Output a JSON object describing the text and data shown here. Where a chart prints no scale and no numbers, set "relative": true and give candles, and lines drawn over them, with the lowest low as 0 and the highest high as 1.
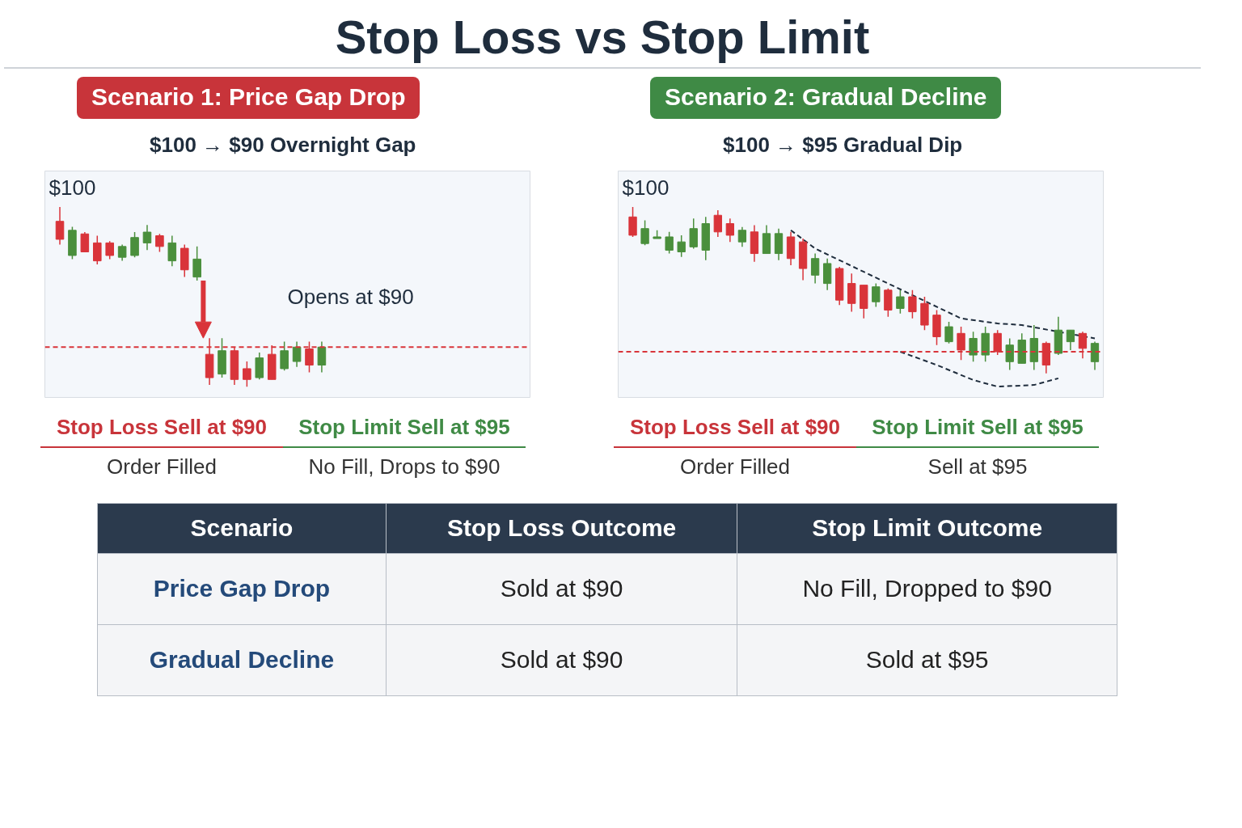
{
  "chart_data": [
    {
      "type": "other",
      "title": "Stop Loss vs Stop Limit"
    },
    {
      "type": "candlestick",
      "title": "Scenario 1: Price Gap Drop",
      "subtitle": "$100 → $90 Overnight Gap",
      "relative": true,
      "categories": [
        null,
        null,
        null,
        null,
        null,
        null,
        null,
        null,
        null,
        null,
        null,
        null,
        null,
        null,
        null,
        null,
        null,
        null,
        null,
        null,
        null,
        null
      ],
      "tick_labels": false,
      "ohlc": [
        [
          0.92,
          1,
          0.79,
          0.82
        ],
        [
          0.73,
          0.89,
          0.71,
          0.87
        ],
        [
          0.85,
          0.86,
          0.75,
          0.75
        ],
        [
          0.8,
          0.84,
          0.68,
          0.7
        ],
        [
          0.8,
          0.81,
          0.71,
          0.73
        ],
        [
          0.72,
          0.79,
          0.7,
          0.78
        ],
        [
          0.73,
          0.86,
          0.72,
          0.83
        ],
        [
          0.8,
          0.9,
          0.76,
          0.86
        ],
        [
          0.84,
          0.85,
          0.75,
          0.78
        ],
        [
          0.7,
          0.84,
          0.67,
          0.8
        ],
        [
          0.77,
          0.79,
          0.61,
          0.65
        ],
        [
          0.61,
          0.78,
          0.59,
          0.71
        ],
        [
          0.18,
          0.27,
          0.01,
          0.05
        ],
        [
          0.07,
          0.27,
          0.05,
          0.2
        ],
        [
          0.2,
          0.22,
          0.01,
          0.04
        ],
        [
          0.1,
          0.14,
          0,
          0.04
        ],
        [
          0.05,
          0.19,
          0.04,
          0.16
        ],
        [
          0.18,
          0.23,
          0.04,
          0.04
        ],
        [
          0.1,
          0.25,
          0.09,
          0.2
        ],
        [
          0.14,
          0.25,
          0.11,
          0.22
        ],
        [
          0.21,
          0.25,
          0.08,
          0.12
        ],
        [
          0.12,
          0.25,
          0.08,
          0.22
        ]
      ],
      "ref_lines": [
        {
          "axis": "y",
          "value": 0.22,
          "color": "#d9343a",
          "line_style": "dashed"
        }
      ],
      "annotations": [
        "$100",
        "Opens at $90",
        "Stop Loss Sell at $90",
        "Stop Limit Sell at $95",
        "Order Filled",
        "No Fill, Drops to $90"
      ]
    },
    {
      "type": "candlestick",
      "title": "Scenario 2: Gradual Decline",
      "subtitle": "$100 → $95 Gradual Dip",
      "relative": true,
      "tick_labels": false,
      "categories": [
        null,
        null,
        null,
        null,
        null,
        null,
        null,
        null,
        null,
        null,
        null,
        null,
        null,
        null,
        null,
        null,
        null,
        null,
        null,
        null,
        null,
        null,
        null,
        null,
        null,
        null,
        null,
        null,
        null,
        null,
        null,
        null,
        null,
        null,
        null,
        null,
        null,
        null,
        null
      ],
      "ohlc": [
        [
          0.94,
          1,
          0.82,
          0.83
        ],
        [
          0.78,
          0.92,
          0.77,
          0.87
        ],
        [
          0.81,
          0.86,
          0.81,
          0.82
        ],
        [
          0.74,
          0.85,
          0.72,
          0.82
        ],
        [
          0.73,
          0.83,
          0.7,
          0.79
        ],
        [
          0.76,
          0.93,
          0.75,
          0.87
        ],
        [
          0.74,
          0.94,
          0.68,
          0.9
        ],
        [
          0.95,
          0.98,
          0.82,
          0.85
        ],
        [
          0.9,
          0.93,
          0.79,
          0.83
        ],
        [
          0.79,
          0.88,
          0.76,
          0.86
        ],
        [
          0.85,
          0.89,
          0.67,
          0.72
        ],
        [
          0.72,
          0.89,
          0.72,
          0.84
        ],
        [
          0.72,
          0.87,
          0.68,
          0.84
        ],
        [
          0.82,
          0.85,
          0.65,
          0.69
        ],
        [
          0.79,
          0.81,
          0.56,
          0.63
        ],
        [
          0.59,
          0.72,
          0.54,
          0.69
        ],
        [
          0.54,
          0.69,
          0.5,
          0.66
        ],
        [
          0.63,
          0.64,
          0.41,
          0.44
        ],
        [
          0.54,
          0.6,
          0.37,
          0.42
        ],
        [
          0.53,
          0.53,
          0.33,
          0.39
        ],
        [
          0.43,
          0.54,
          0.4,
          0.52
        ],
        [
          0.5,
          0.51,
          0.34,
          0.38
        ],
        [
          0.39,
          0.5,
          0.36,
          0.46
        ],
        [
          0.46,
          0.5,
          0.33,
          0.37
        ],
        [
          0.42,
          0.46,
          0.26,
          0.29
        ],
        [
          0.35,
          0.38,
          0.17,
          0.22
        ],
        [
          0.19,
          0.31,
          0.18,
          0.28
        ],
        [
          0.24,
          0.28,
          0.08,
          0.14
        ],
        [
          0.11,
          0.25,
          0.07,
          0.21
        ],
        [
          0.11,
          0.28,
          0.07,
          0.24
        ],
        [
          0.24,
          0.26,
          0.11,
          0.13
        ],
        [
          0.07,
          0.21,
          0.02,
          0.17
        ],
        [
          0.06,
          0.24,
          0.06,
          0.2
        ],
        [
          0.07,
          0.29,
          0.02,
          0.21
        ],
        [
          0.18,
          0.19,
          0,
          0.05
        ],
        [
          0.12,
          0.34,
          0.11,
          0.26
        ],
        [
          0.19,
          0.26,
          0.14,
          0.26
        ],
        [
          0.24,
          0.25,
          0.09,
          0.15
        ],
        [
          0.07,
          0.19,
          0.02,
          0.18
        ]
      ],
      "series": [
        {
          "type": "line",
          "color": "#1f2d3d",
          "line_style": "dashed",
          "values": [
            null,
            null,
            null,
            null,
            null,
            null,
            null,
            null,
            null,
            null,
            null,
            null,
            null,
            0.86,
            null,
            0.75,
            null,
            null,
            null,
            0.61,
            null,
            null,
            null,
            null,
            null,
            null,
            null,
            0.33,
            null,
            null,
            0.3,
            null,
            0.29,
            null,
            null,
            null,
            null,
            null,
            0.21
          ]
        },
        {
          "type": "line",
          "color": "#1f2d3d",
          "line_style": "dashed",
          "values": [
            null,
            null,
            null,
            null,
            null,
            null,
            null,
            null,
            null,
            null,
            null,
            null,
            null,
            null,
            null,
            null,
            null,
            null,
            null,
            null,
            null,
            null,
            0.13,
            null,
            null,
            0.05,
            null,
            null,
            -0.04,
            null,
            -0.08,
            null,
            null,
            -0.07,
            null,
            -0.03,
            null,
            null,
            null
          ]
        }
      ],
      "ref_lines": [
        {
          "axis": "y",
          "value": 0.13,
          "color": "#d9343a",
          "line_style": "dashed"
        }
      ],
      "annotations": [
        "$100",
        "Stop Loss Sell at $90",
        "Stop Limit Sell at $95",
        "Order Filled",
        "Sell at $95"
      ]
    },
    {
      "type": "other",
      "categories": [
        "Scenario",
        "Stop Loss Outcome",
        "Stop Limit Outcome"
      ],
      "annotations": [
        "Price Gap Drop",
        "Sold at $90",
        "No Fill, Dropped to $90",
        "Gradual Decline",
        "Sold at $90",
        "Sold at $95"
      ]
    }
  ]
}
